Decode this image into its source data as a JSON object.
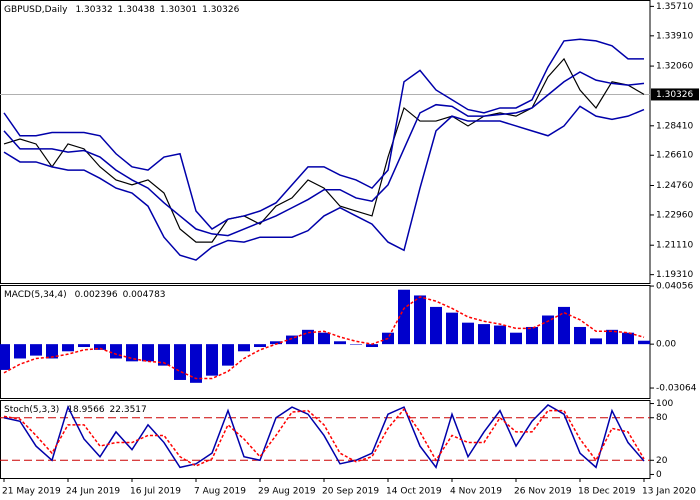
{
  "chart_data": [
    {
      "type": "line",
      "title": "GBPUSD,Daily",
      "header_values": [
        1.30332,
        1.30438,
        1.30301,
        1.30326
      ],
      "current_price": 1.30326,
      "ylim": [
        1.188,
        1.361
      ],
      "yticks": [
        {
          "value": 1.3571,
          "label": "1.35710"
        },
        {
          "value": 1.3391,
          "label": "1.33910"
        },
        {
          "value": 1.3206,
          "label": "1.32060"
        },
        {
          "value": 1.2841,
          "label": "1.28410"
        },
        {
          "value": 1.2661,
          "label": "1.26610"
        },
        {
          "value": 1.2476,
          "label": "1.24760"
        },
        {
          "value": 1.2296,
          "label": "1.22960"
        },
        {
          "value": 1.2111,
          "label": "1.21110"
        },
        {
          "value": 1.1931,
          "label": "1.19310"
        }
      ],
      "series": [
        {
          "color": "#000000",
          "values": [
            1.273,
            1.276,
            1.273,
            1.259,
            1.273,
            1.27,
            1.259,
            1.251,
            1.248,
            1.251,
            1.243,
            1.221,
            1.213,
            1.213,
            1.227,
            1.229,
            1.224,
            1.235,
            1.24,
            1.251,
            1.246,
            1.235,
            1.232,
            1.229,
            1.265,
            1.295,
            1.287,
            1.287,
            1.29,
            1.284,
            1.29,
            1.292,
            1.29,
            1.295,
            1.314,
            1.325,
            1.306,
            1.295,
            1.311,
            1.309,
            1.3033
          ]
        },
        {
          "color": "#0000aa",
          "values": [
            1.292,
            1.278,
            1.278,
            1.28,
            1.28,
            1.28,
            1.278,
            1.267,
            1.259,
            1.257,
            1.265,
            1.267,
            1.232,
            1.221,
            1.227,
            1.229,
            1.232,
            1.237,
            1.248,
            1.259,
            1.259,
            1.254,
            1.251,
            1.246,
            1.257,
            1.311,
            1.318,
            1.306,
            1.3,
            1.294,
            1.292,
            1.295,
            1.295,
            1.3,
            1.32,
            1.336,
            1.337,
            1.336,
            1.333,
            1.325,
            1.325
          ]
        },
        {
          "color": "#0000aa",
          "values": [
            1.281,
            1.27,
            1.27,
            1.27,
            1.268,
            1.269,
            1.265,
            1.257,
            1.251,
            1.246,
            1.237,
            1.229,
            1.221,
            1.218,
            1.217,
            1.221,
            1.225,
            1.229,
            1.234,
            1.239,
            1.245,
            1.245,
            1.24,
            1.238,
            1.248,
            1.27,
            1.292,
            1.297,
            1.296,
            1.29,
            1.29,
            1.291,
            1.292,
            1.295,
            1.303,
            1.311,
            1.317,
            1.312,
            1.31,
            1.309,
            1.31
          ]
        },
        {
          "color": "#0000aa",
          "values": [
            1.268,
            1.262,
            1.262,
            1.259,
            1.257,
            1.257,
            1.252,
            1.246,
            1.243,
            1.235,
            1.216,
            1.205,
            1.202,
            1.21,
            1.214,
            1.213,
            1.216,
            1.216,
            1.216,
            1.22,
            1.229,
            1.234,
            1.229,
            1.224,
            1.213,
            1.208,
            1.246,
            1.281,
            1.29,
            1.287,
            1.287,
            1.287,
            1.284,
            1.281,
            1.278,
            1.284,
            1.296,
            1.29,
            1.288,
            1.29,
            1.294
          ]
        }
      ]
    },
    {
      "type": "bar",
      "title": "MACD(5,34,4)",
      "header_values": [
        0.002396,
        0.004783
      ],
      "ylim": [
        -0.0376,
        0.0413
      ],
      "yticks": [
        0.04056,
        {
          "value": 0,
          "label": "0.00"
        },
        -0.03064
      ],
      "series": [
        {
          "kind": "bar",
          "color": "#0000cc",
          "values": [
            -0.018,
            -0.01,
            -0.008,
            -0.01,
            -0.005,
            -0.002,
            -0.004,
            -0.01,
            -0.012,
            -0.012,
            -0.015,
            -0.025,
            -0.027,
            -0.022,
            -0.015,
            -0.005,
            -0.002,
            0.002,
            0.006,
            0.01,
            0.008,
            0.002,
            0,
            -0.002,
            0.008,
            0.038,
            0.034,
            0.026,
            0.022,
            0.015,
            0.014,
            0.013,
            0.008,
            0.012,
            0.02,
            0.026,
            0.012,
            0.004,
            0.01,
            0.008,
            0.0024
          ]
        },
        {
          "kind": "line",
          "dash": true,
          "color": "#ff0000",
          "values": [
            -0.02,
            -0.014,
            -0.01,
            -0.009,
            -0.007,
            -0.004,
            -0.003,
            -0.007,
            -0.01,
            -0.012,
            -0.013,
            -0.019,
            -0.024,
            -0.024,
            -0.019,
            -0.01,
            -0.004,
            0,
            0.004,
            0.008,
            0.009,
            0.005,
            0.002,
            0,
            0.004,
            0.025,
            0.033,
            0.03,
            0.025,
            0.019,
            0.016,
            0.014,
            0.011,
            0.011,
            0.016,
            0.022,
            0.017,
            0.009,
            0.009,
            0.008,
            0.0048
          ]
        }
      ]
    },
    {
      "type": "line",
      "title": "Stoch(5,3,3)",
      "header_values": [
        18.9566,
        22.3517
      ],
      "ylim": [
        -5,
        105
      ],
      "yticks": [
        100,
        80,
        20,
        0
      ],
      "levels": [
        20,
        80
      ],
      "categories": [
        "21 May 2019",
        null,
        null,
        null,
        "24 Jun 2019",
        null,
        null,
        null,
        "16 Jul 2019",
        null,
        null,
        null,
        "7 Aug 2019",
        null,
        null,
        null,
        "29 Aug 2019",
        null,
        null,
        null,
        "20 Sep 2019",
        null,
        null,
        null,
        "14 Oct 2019",
        null,
        null,
        null,
        "4 Nov 2019",
        null,
        null,
        null,
        "26 Nov 2019",
        null,
        null,
        null,
        "18 Dec 2019",
        null,
        null,
        null,
        "13 Jan 2020"
      ],
      "series": [
        {
          "kind": "line",
          "color": "#0000aa",
          "values": [
            80,
            75,
            40,
            20,
            95,
            50,
            25,
            60,
            35,
            70,
            45,
            10,
            15,
            30,
            90,
            25,
            20,
            80,
            95,
            85,
            55,
            15,
            20,
            30,
            85,
            95,
            40,
            10,
            85,
            25,
            60,
            90,
            40,
            75,
            98,
            85,
            30,
            10,
            90,
            45,
            19
          ]
        },
        {
          "kind": "line",
          "dash": true,
          "color": "#ff0000",
          "values": [
            82,
            78,
            55,
            30,
            70,
            70,
            40,
            45,
            45,
            55,
            55,
            25,
            12,
            22,
            70,
            50,
            25,
            55,
            88,
            90,
            70,
            30,
            18,
            25,
            65,
            92,
            60,
            20,
            55,
            45,
            45,
            80,
            60,
            60,
            90,
            90,
            50,
            20,
            65,
            60,
            22
          ]
        }
      ]
    }
  ]
}
